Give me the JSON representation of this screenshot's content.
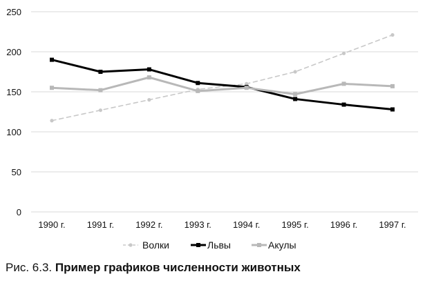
{
  "chart_data": {
    "type": "line",
    "categories": [
      "1990 г.",
      "1991 г.",
      "1992 г.",
      "1993 г.",
      "1994 г.",
      "1995 г.",
      "1996 г.",
      "1997 г."
    ],
    "series": [
      {
        "name": "Волки",
        "values": [
          114,
          127,
          140,
          153,
          160,
          175,
          198,
          221
        ],
        "color": "#c8c8c8",
        "style": "dashed",
        "marker": "circle"
      },
      {
        "name": "Львы",
        "values": [
          190,
          175,
          178,
          161,
          156,
          141,
          134,
          128
        ],
        "color": "#000000",
        "style": "solid",
        "marker": "square"
      },
      {
        "name": "Акулы",
        "values": [
          155,
          152,
          168,
          151,
          155,
          147,
          160,
          157
        ],
        "color": "#b8b8b8",
        "style": "solid",
        "marker": "square"
      }
    ],
    "yticks": [
      "0",
      "50",
      "100",
      "150",
      "200",
      "250"
    ],
    "ylim": [
      0,
      250
    ],
    "grid": true,
    "legend_position": "bottom",
    "title": "",
    "xlabel": "",
    "ylabel": ""
  },
  "caption": {
    "prefix": "Рис. 6.3.",
    "title": "Пример графиков численности животных"
  }
}
